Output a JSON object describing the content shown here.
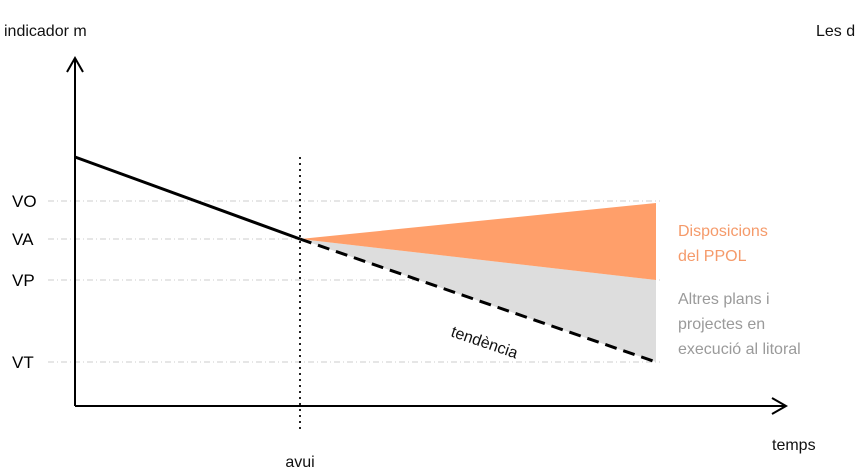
{
  "yaxis_label": "indicador m",
  "xaxis_label": "temps",
  "today_label": "avui",
  "corner_text": "Les d",
  "levels": [
    {
      "key": "VO",
      "label": "VO"
    },
    {
      "key": "VA",
      "label": "VA"
    },
    {
      "key": "VP",
      "label": "VP"
    },
    {
      "key": "VT",
      "label": "VT"
    }
  ],
  "trend_label": "tendència",
  "annotations": {
    "ppol": [
      "Disposicions",
      "del PPOL"
    ],
    "others": [
      "Altres plans i",
      "projectes en",
      "execució al litoral"
    ]
  },
  "colors": {
    "ppol_area": "#ff9f6a",
    "others_area": "#dddddd",
    "ppol_text": "#f59a6a",
    "others_text": "#9a9a9a",
    "guides": "#cccccc"
  }
}
